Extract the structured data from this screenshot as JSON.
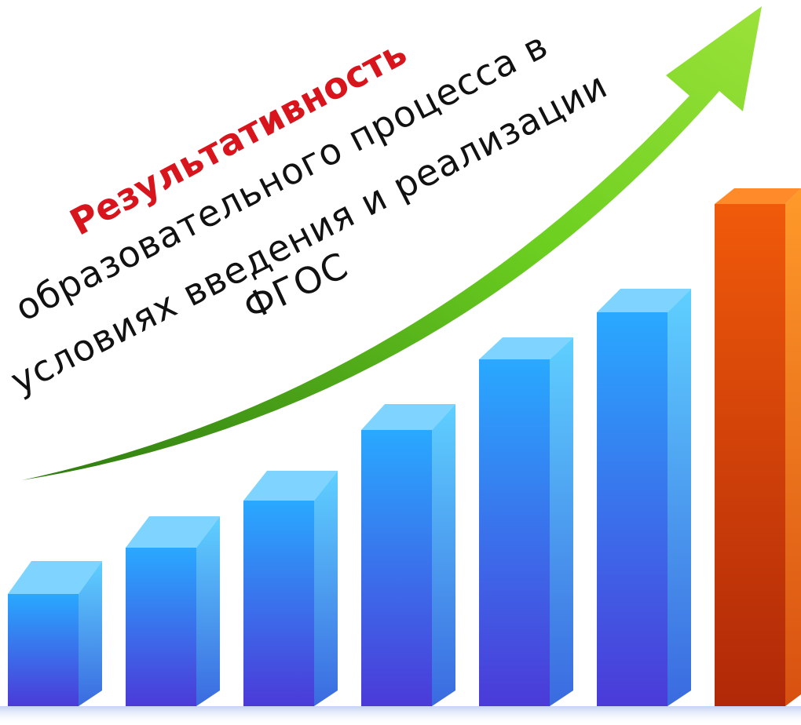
{
  "title": "Результативность",
  "subtitle_lines": [
    "образовательного процесса в",
    "условиях введения и реализации",
    "ФГОС"
  ]
}
